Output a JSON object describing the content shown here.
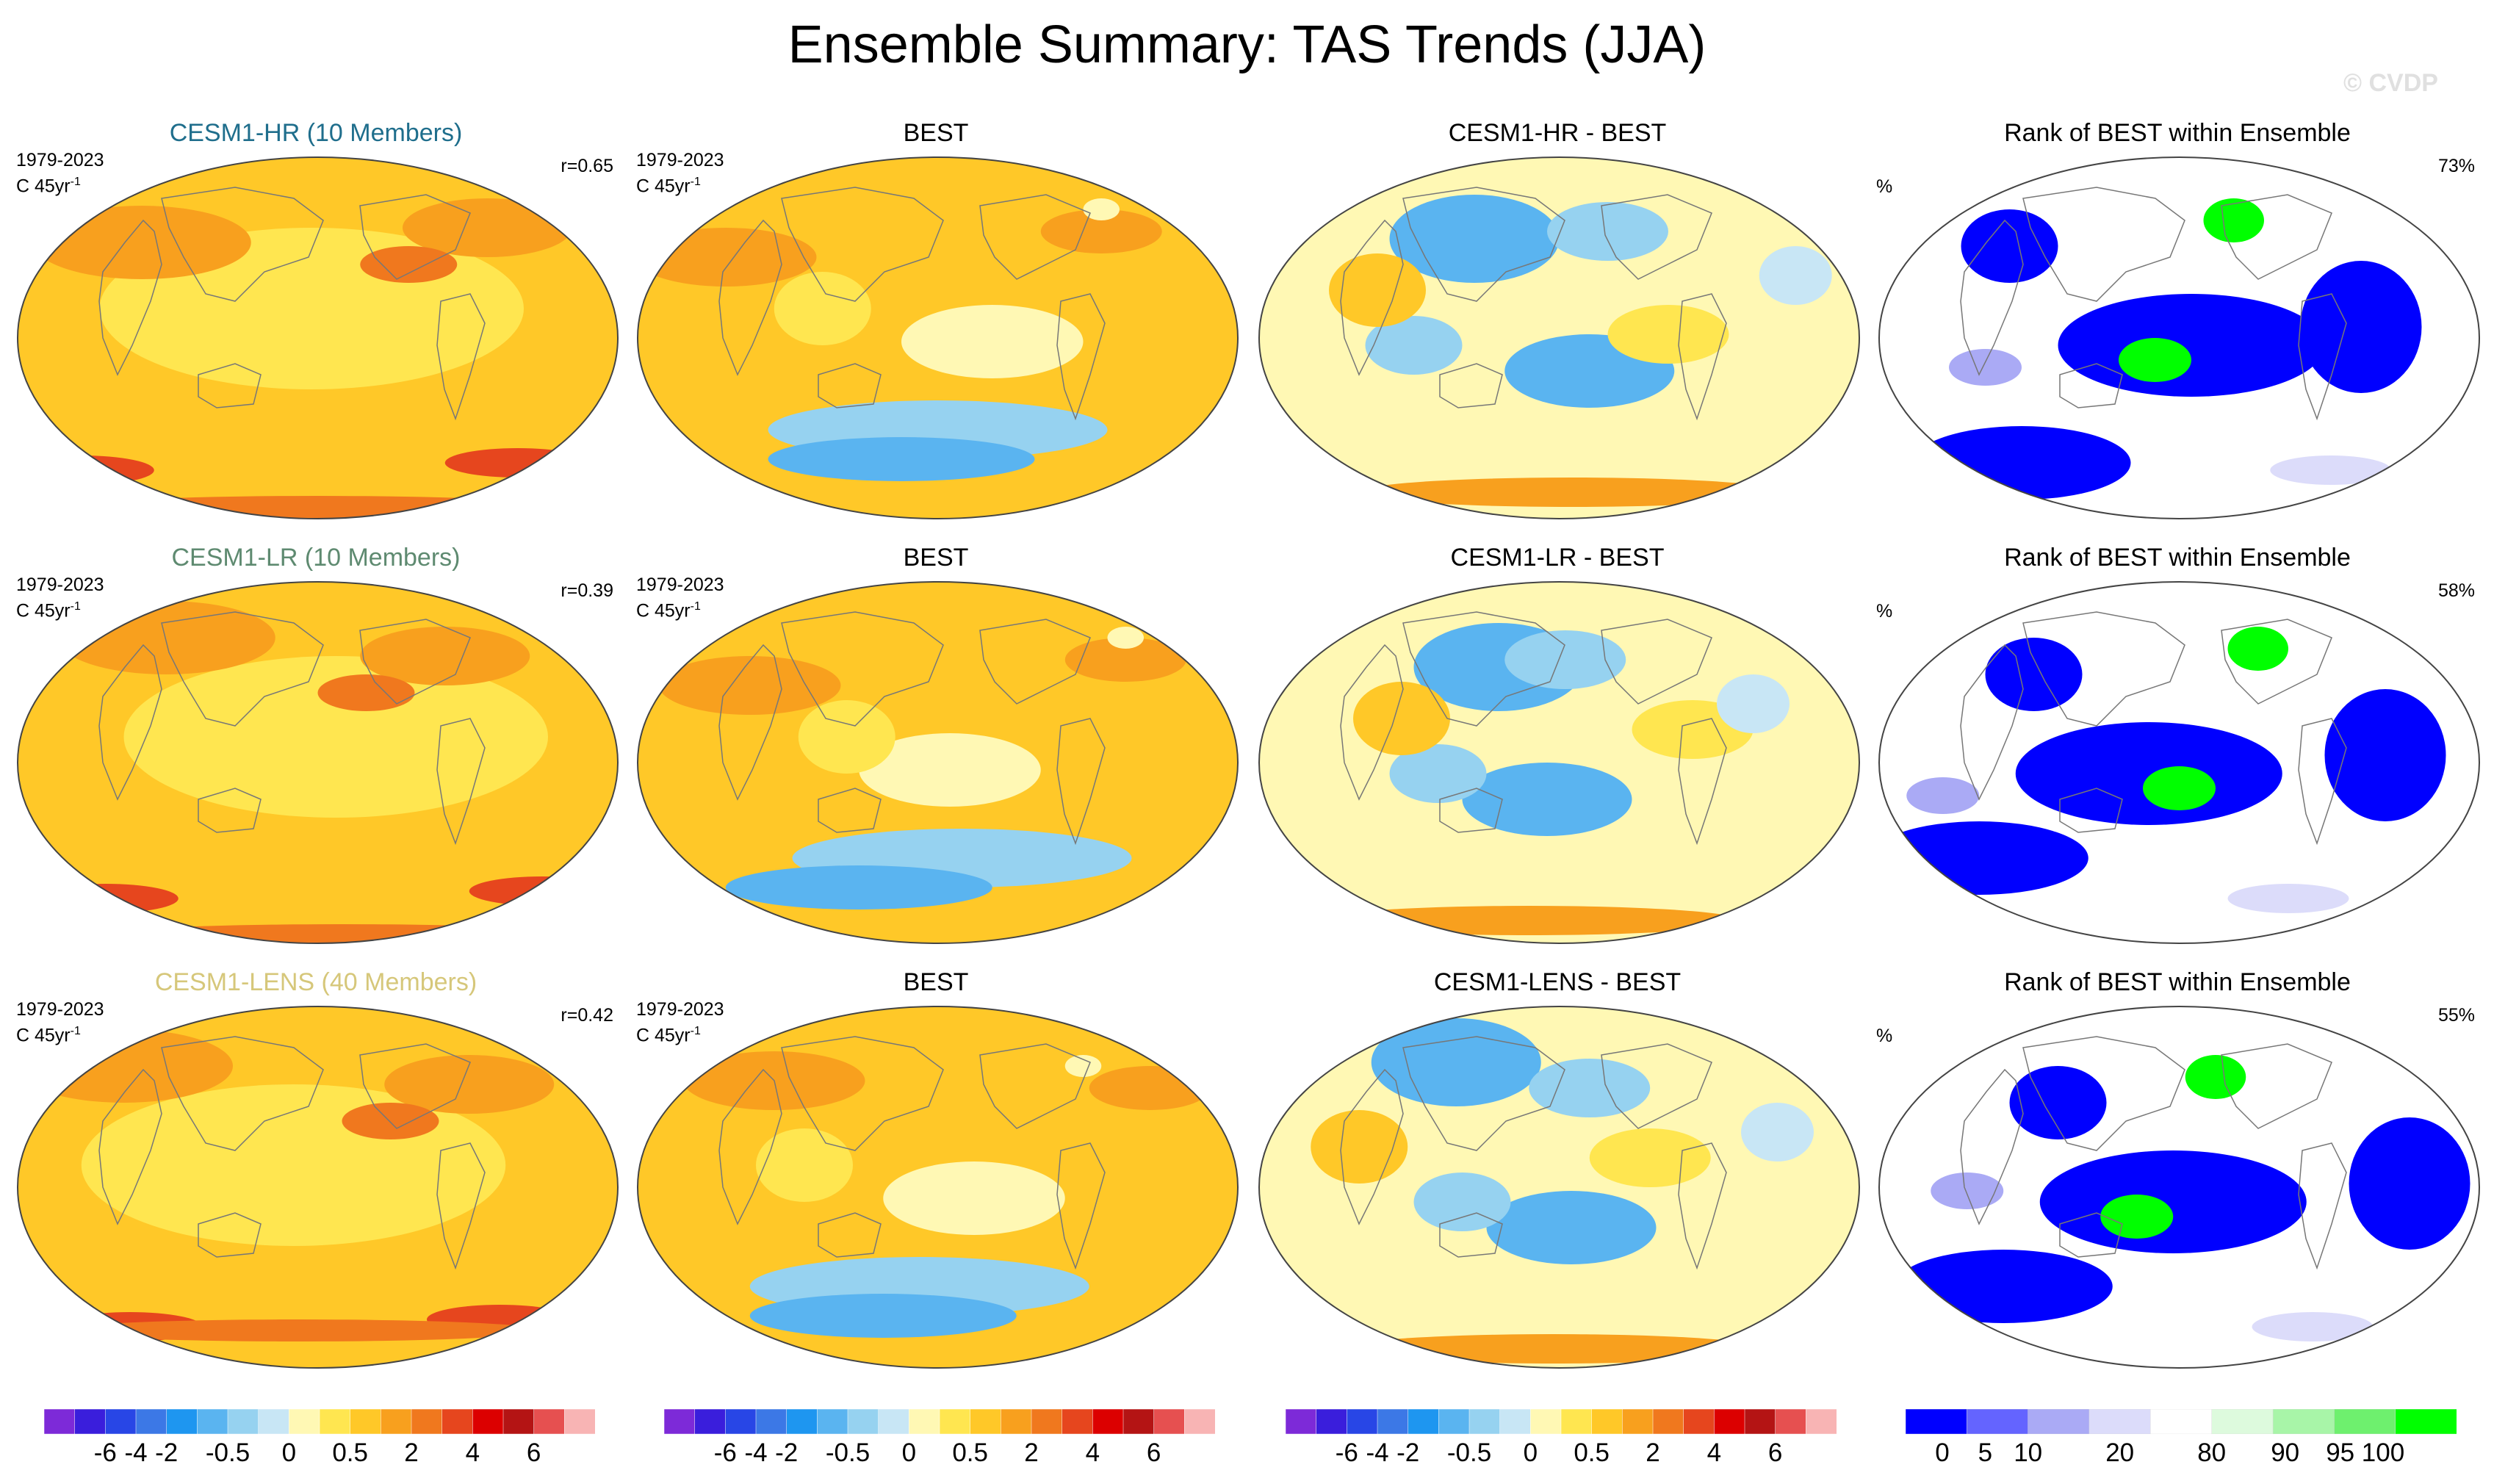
{
  "title": "Ensemble Summary: TAS Trends (JJA)",
  "watermark": "© CVDP",
  "period": "1979-2023",
  "units": "C 45yr",
  "units_sup": "-1",
  "percent_sign": "%",
  "colors": {
    "trend_levels": [
      "#7d2ad8",
      "#3a1edc",
      "#2846e6",
      "#3c78e6",
      "#1e96f0",
      "#5ab4f0",
      "#96d2f0",
      "#c8e6f5",
      "#fff8b4",
      "#ffe650",
      "#ffc828",
      "#f8a01e",
      "#f0781e",
      "#e6461e",
      "#dc0000",
      "#b41414",
      "#e65050",
      "#f8b4b4"
    ],
    "rank_levels": [
      "#0000ff",
      "#6464ff",
      "#aaaaf5",
      "#dcdcfa",
      "#ffffff",
      "#ddfadd",
      "#a8f5a8",
      "#6ef06e",
      "#00ff00"
    ]
  },
  "rows": [
    {
      "model_title": "CESM1-HR (10 Members)",
      "model_title_color": "#1f6e8c",
      "corr": "r=0.65",
      "obs_title": "BEST",
      "diff_title": "CESM1-HR - BEST",
      "rank_title": "Rank of BEST within Ensemble",
      "rank_pct": "73%"
    },
    {
      "model_title": "CESM1-LR (10 Members)",
      "model_title_color": "#5e8a70",
      "corr": "r=0.39",
      "obs_title": "BEST",
      "diff_title": "CESM1-LR - BEST",
      "rank_title": "Rank of BEST within Ensemble",
      "rank_pct": "58%"
    },
    {
      "model_title": "CESM1-LENS (40 Members)",
      "model_title_color": "#d6c77a",
      "corr": "r=0.42",
      "obs_title": "BEST",
      "diff_title": "CESM1-LENS - BEST",
      "rank_title": "Rank of BEST within Ensemble",
      "rank_pct": "55%"
    }
  ],
  "colorbar_trend_labels": [
    "-6",
    "-4",
    "-2",
    "-0.5",
    "0",
    "0.5",
    "2",
    "4",
    "6"
  ],
  "colorbar_rank_labels": [
    "0",
    "5",
    "10",
    "20",
    "80",
    "90",
    "95",
    "100"
  ],
  "chart_data": {
    "type": "heatmap",
    "title": "Ensemble Summary: TAS Trends (JJA)",
    "projection": "global map",
    "period": "1979-2023",
    "units": "C 45yr-1",
    "panels_per_row": [
      "ensemble mean trend",
      "observed trend (BEST)",
      "ensemble mean minus BEST",
      "rank of BEST within ensemble (%)"
    ],
    "pattern_correlations": [
      {
        "model": "CESM1-HR",
        "members": 10,
        "r": 0.65,
        "rank_pct": 73
      },
      {
        "model": "CESM1-LR",
        "members": 10,
        "r": 0.39,
        "rank_pct": 58
      },
      {
        "model": "CESM1-LENS",
        "members": 40,
        "r": 0.42,
        "rank_pct": 55
      }
    ],
    "trend_levels": [
      -6,
      -4,
      -2,
      -0.5,
      0,
      0.5,
      2,
      4,
      6
    ],
    "rank_levels": [
      0,
      5,
      10,
      20,
      80,
      90,
      95,
      100
    ]
  }
}
